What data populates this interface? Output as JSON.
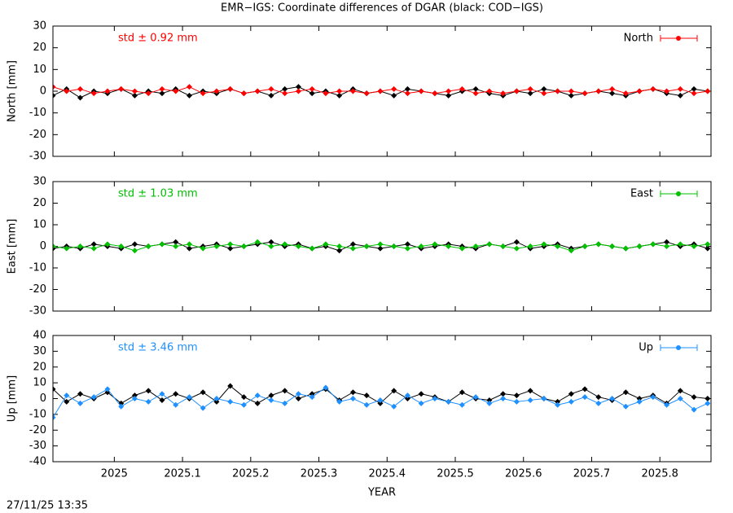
{
  "title": "EMR−IGS: Coordinate differences of DGAR (black: COD−IGS)",
  "timestamp": "27/11/25 13:35",
  "chart_data": [
    {
      "type": "line",
      "ylabel": "North [mm]",
      "annotation": "std ± 0.92 mm",
      "ylim": [
        -30,
        30
      ],
      "yticks": [
        -30,
        -20,
        -10,
        0,
        10,
        20,
        30
      ],
      "xlim": [
        2024.91,
        2025.875
      ],
      "x": [
        2024.91,
        2024.93,
        2024.95,
        2024.97,
        2024.99,
        2025.01,
        2025.03,
        2025.05,
        2025.07,
        2025.09,
        2025.11,
        2025.13,
        2025.15,
        2025.17,
        2025.19,
        2025.21,
        2025.23,
        2025.25,
        2025.27,
        2025.29,
        2025.31,
        2025.33,
        2025.35,
        2025.37,
        2025.39,
        2025.41,
        2025.43,
        2025.45,
        2025.47,
        2025.49,
        2025.51,
        2025.53,
        2025.55,
        2025.57,
        2025.59,
        2025.61,
        2025.63,
        2025.65,
        2025.67,
        2025.69,
        2025.71,
        2025.73,
        2025.75,
        2025.77,
        2025.79,
        2025.81,
        2025.83,
        2025.85,
        2025.87
      ],
      "series": [
        {
          "color": "#000000",
          "values": [
            -2,
            1,
            -3,
            0,
            -1,
            1,
            -2,
            0,
            -1,
            1,
            -2,
            0,
            -1,
            1,
            -1,
            0,
            -2,
            1,
            2,
            -1,
            0,
            -2,
            1,
            -1,
            0,
            -2,
            1,
            0,
            -1,
            -2,
            0,
            1,
            -1,
            -2,
            0,
            -1,
            1,
            0,
            -2,
            -1,
            0,
            -1,
            -2,
            0,
            1,
            -1,
            -2,
            1,
            0
          ]
        },
        {
          "name": "North",
          "color": "#ff0000",
          "values": [
            2,
            0,
            1,
            -1,
            0,
            1,
            0,
            -1,
            1,
            0,
            2,
            -1,
            0,
            1,
            -1,
            0,
            1,
            -1,
            0,
            1,
            -1,
            0,
            0,
            -1,
            0,
            1,
            -1,
            0,
            -1,
            0,
            1,
            -1,
            0,
            -1,
            0,
            1,
            -1,
            0,
            0,
            -1,
            0,
            1,
            -1,
            0,
            1,
            0,
            1,
            -1,
            0
          ]
        }
      ]
    },
    {
      "type": "line",
      "ylabel": "East [mm]",
      "annotation": "std ± 1.03 mm",
      "ylim": [
        -30,
        30
      ],
      "yticks": [
        -30,
        -20,
        -10,
        0,
        10,
        20,
        30
      ],
      "xlim": [
        2024.91,
        2025.875
      ],
      "x": [
        2024.91,
        2024.93,
        2024.95,
        2024.97,
        2024.99,
        2025.01,
        2025.03,
        2025.05,
        2025.07,
        2025.09,
        2025.11,
        2025.13,
        2025.15,
        2025.17,
        2025.19,
        2025.21,
        2025.23,
        2025.25,
        2025.27,
        2025.29,
        2025.31,
        2025.33,
        2025.35,
        2025.37,
        2025.39,
        2025.41,
        2025.43,
        2025.45,
        2025.47,
        2025.49,
        2025.51,
        2025.53,
        2025.55,
        2025.57,
        2025.59,
        2025.61,
        2025.63,
        2025.65,
        2025.67,
        2025.69,
        2025.71,
        2025.73,
        2025.75,
        2025.77,
        2025.79,
        2025.81,
        2025.83,
        2025.85,
        2025.87
      ],
      "series": [
        {
          "color": "#000000",
          "values": [
            -1,
            0,
            -1,
            1,
            0,
            -1,
            1,
            0,
            1,
            2,
            -1,
            0,
            1,
            -1,
            0,
            1,
            2,
            0,
            1,
            -1,
            0,
            -2,
            1,
            0,
            -1,
            0,
            1,
            -1,
            0,
            1,
            0,
            -1,
            1,
            0,
            2,
            -1,
            0,
            1,
            -1,
            0,
            1,
            0,
            -1,
            0,
            1,
            2,
            0,
            1,
            -1
          ]
        },
        {
          "name": "East",
          "color": "#00c000",
          "values": [
            0,
            -1,
            0,
            -1,
            1,
            0,
            -2,
            0,
            1,
            0,
            1,
            -1,
            0,
            1,
            0,
            2,
            0,
            1,
            0,
            -1,
            1,
            0,
            -1,
            0,
            1,
            0,
            -1,
            0,
            1,
            0,
            -1,
            0,
            1,
            0,
            -1,
            0,
            1,
            0,
            -2,
            0,
            1,
            0,
            -1,
            0,
            1,
            0,
            1,
            0,
            1
          ]
        }
      ]
    },
    {
      "type": "line",
      "ylabel": "Up [mm]",
      "annotation": "std ± 3.46 mm",
      "xlabel": "YEAR",
      "ylim": [
        -40,
        40
      ],
      "yticks": [
        -40,
        -30,
        -20,
        -10,
        0,
        10,
        20,
        30,
        40
      ],
      "xlim": [
        2024.91,
        2025.875
      ],
      "xticks": [
        2025,
        2025.1,
        2025.2,
        2025.3,
        2025.4,
        2025.5,
        2025.6,
        2025.7,
        2025.8
      ],
      "x": [
        2024.91,
        2024.93,
        2024.95,
        2024.97,
        2024.99,
        2025.01,
        2025.03,
        2025.05,
        2025.07,
        2025.09,
        2025.11,
        2025.13,
        2025.15,
        2025.17,
        2025.19,
        2025.21,
        2025.23,
        2025.25,
        2025.27,
        2025.29,
        2025.31,
        2025.33,
        2025.35,
        2025.37,
        2025.39,
        2025.41,
        2025.43,
        2025.45,
        2025.47,
        2025.49,
        2025.51,
        2025.53,
        2025.55,
        2025.57,
        2025.59,
        2025.61,
        2025.63,
        2025.65,
        2025.67,
        2025.69,
        2025.71,
        2025.73,
        2025.75,
        2025.77,
        2025.79,
        2025.81,
        2025.83,
        2025.85,
        2025.87
      ],
      "series": [
        {
          "color": "#000000",
          "values": [
            6,
            -2,
            3,
            0,
            4,
            -3,
            2,
            5,
            -1,
            3,
            0,
            4,
            -2,
            8,
            1,
            -3,
            2,
            5,
            0,
            3,
            6,
            -1,
            4,
            2,
            -3,
            5,
            0,
            3,
            1,
            -2,
            4,
            0,
            -1,
            3,
            2,
            5,
            0,
            -2,
            3,
            6,
            1,
            -1,
            4,
            0,
            2,
            -3,
            5,
            1,
            0
          ]
        },
        {
          "name": "Up",
          "color": "#1e90ff",
          "values": [
            -12,
            2,
            -3,
            1,
            6,
            -5,
            0,
            -2,
            3,
            -4,
            1,
            -6,
            0,
            -2,
            -4,
            2,
            -1,
            -3,
            3,
            1,
            7,
            -2,
            0,
            -4,
            -1,
            -5,
            2,
            -3,
            0,
            -2,
            -4,
            1,
            -3,
            0,
            -2,
            -1,
            0,
            -4,
            -2,
            1,
            -3,
            0,
            -5,
            -2,
            1,
            -4,
            0,
            -7,
            -3
          ]
        }
      ]
    }
  ]
}
